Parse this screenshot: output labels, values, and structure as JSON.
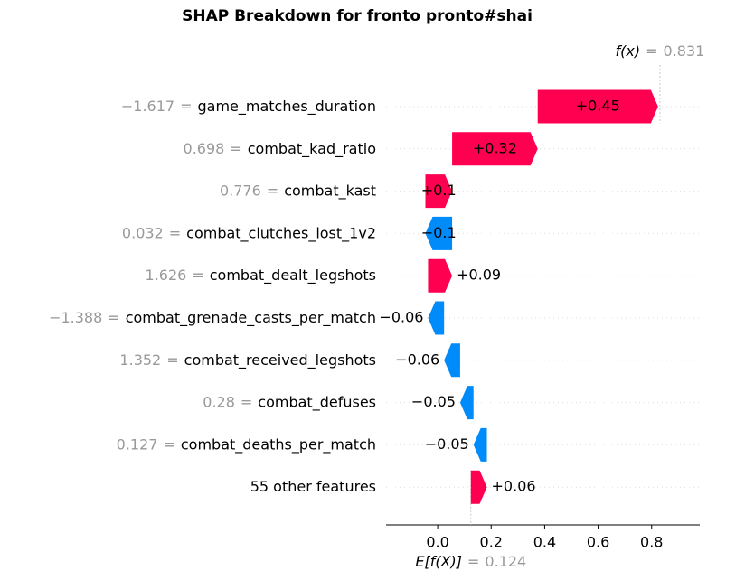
{
  "chart_data": {
    "type": "waterfall",
    "title": "SHAP Breakdown for fronto pronto#shai",
    "features": [
      "game_matches_duration",
      "combat_kad_ratio",
      "combat_kast",
      "combat_clutches_lost_1v2",
      "combat_dealt_legshots",
      "combat_grenade_casts_per_match",
      "combat_received_legshots",
      "combat_defuses",
      "combat_deaths_per_match",
      "55 other features"
    ],
    "feature_values": [
      "−1.617",
      "0.698",
      "0.776",
      "0.032",
      "1.626",
      "−1.388",
      "1.352",
      "0.28",
      "0.127",
      null
    ],
    "separator": "=",
    "values": [
      0.45,
      0.32,
      0.1,
      -0.1,
      0.09,
      -0.06,
      -0.06,
      -0.05,
      -0.05,
      0.06
    ],
    "value_labels": [
      "+0.45",
      "+0.32",
      "+0.1",
      "−0.1",
      "+0.09",
      "−0.06",
      "−0.06",
      "−0.05",
      "−0.05",
      "+0.06"
    ],
    "base_label": "E[f(X)]",
    "base_value": 0.124,
    "output_label": "f(x)",
    "output_value": 0.831,
    "pos_color": "#ff0051",
    "neg_color": "#008bfb",
    "xlim": [
      -0.193,
      0.98
    ],
    "xticks": [
      {
        "value": 0,
        "label": "0.0"
      },
      0.2,
      0.4,
      0.6,
      0.8
    ]
  }
}
